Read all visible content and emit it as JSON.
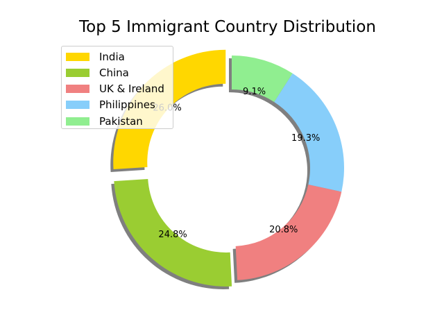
{
  "chart_data": {
    "type": "pie",
    "title": "Top 5 Immigrant Country Distribution",
    "categories": [
      "India",
      "China",
      "UK & Ireland",
      "Philippines",
      "Pakistan"
    ],
    "values": [
      26.0,
      24.8,
      20.8,
      19.3,
      9.1
    ],
    "value_labels": [
      "26.0%",
      "24.8%",
      "20.8%",
      "19.3%",
      "9.1%"
    ],
    "colors": [
      "#ffd700",
      "#9acd32",
      "#f08080",
      "#87cefa",
      "#90ee90"
    ],
    "exploded": [
      "India",
      "China"
    ],
    "donut": true,
    "shadow": true,
    "legend_position": "upper-left"
  }
}
